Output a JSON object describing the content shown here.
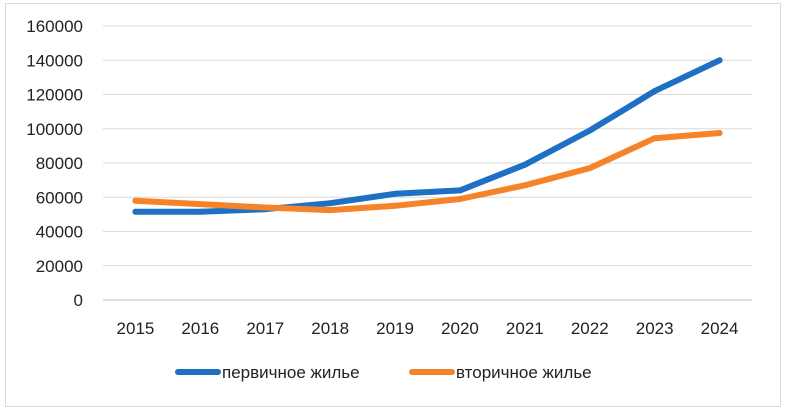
{
  "chart_data": {
    "type": "line",
    "title": "",
    "xlabel": "",
    "ylabel": "",
    "categories": [
      "2015",
      "2016",
      "2017",
      "2018",
      "2019",
      "2020",
      "2021",
      "2022",
      "2023",
      "2024"
    ],
    "ylim": [
      0,
      160000
    ],
    "yticks": [
      0,
      20000,
      40000,
      60000,
      80000,
      100000,
      120000,
      140000,
      160000
    ],
    "grid": true,
    "legend_position": "bottom",
    "series": [
      {
        "name": "первичное жилье",
        "color": "#1f6fc5",
        "values": [
          51500,
          51500,
          53000,
          56500,
          62000,
          64000,
          79000,
          99000,
          122000,
          140000
        ]
      },
      {
        "name": "вторичное жилье",
        "color": "#f5832a",
        "values": [
          58000,
          56000,
          54000,
          52500,
          55000,
          59000,
          67000,
          77000,
          94500,
          97500
        ]
      }
    ]
  }
}
